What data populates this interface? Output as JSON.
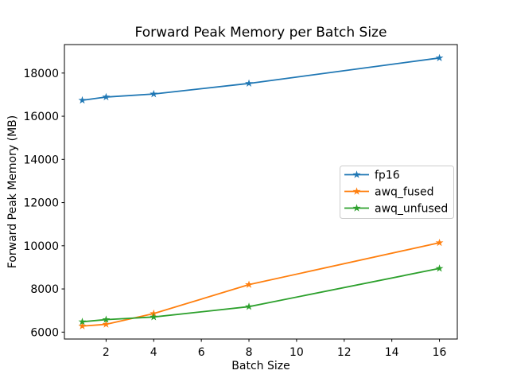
{
  "chart_data": {
    "type": "line",
    "title": "Forward Peak Memory per Batch Size",
    "xlabel": "Batch Size",
    "ylabel": "Forward Peak Memory (MB)",
    "x": [
      1,
      2,
      4,
      8,
      16
    ],
    "series": [
      {
        "name": "fp16",
        "color": "#1f77b4",
        "values": [
          16740,
          16890,
          17030,
          17520,
          18700
        ]
      },
      {
        "name": "awq_fused",
        "color": "#ff7f0e",
        "values": [
          6280,
          6360,
          6860,
          8200,
          10140
        ]
      },
      {
        "name": "awq_unfused",
        "color": "#2ca02c",
        "values": [
          6480,
          6580,
          6700,
          7180,
          8950
        ]
      }
    ],
    "marker": "star",
    "xticks": [
      2,
      4,
      6,
      8,
      10,
      12,
      14,
      16
    ],
    "yticks": [
      6000,
      8000,
      10000,
      12000,
      14000,
      16000,
      18000
    ],
    "xlim": [
      0.25,
      16.75
    ],
    "ylim": [
      5680,
      19320
    ],
    "grid": false,
    "legend_position": "center-right",
    "colors": {
      "background": "#ffffff",
      "spine": "#000000",
      "text": "#000000",
      "legend_border": "#cccccc"
    }
  }
}
